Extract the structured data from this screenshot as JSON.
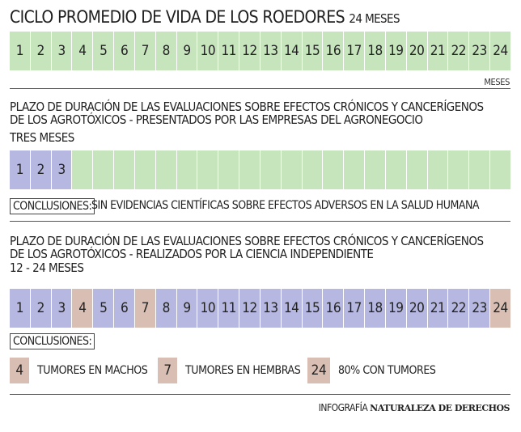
{
  "section1": {
    "title": "CICLO PROMEDIO DE VIDA DE LOS ROEDORES",
    "title_suffix": "24 MESES",
    "months": [
      "1",
      "2",
      "3",
      "4",
      "5",
      "6",
      "7",
      "8",
      "9",
      "10",
      "11",
      "12",
      "13",
      "14",
      "15",
      "16",
      "17",
      "18",
      "19",
      "20",
      "21",
      "22",
      "23",
      "24"
    ],
    "unit_label": "MESES"
  },
  "section2": {
    "title_line1": "PLAZO DE DURACIÓN DE LAS EVALUACIONES SOBRE EFECTOS CRÓNICOS Y  CANCERÍGENOS",
    "title_line2": "DE LOS AGROTÓXICOS - PRESENTADOS POR LAS EMPRESAS DEL AGRONEGOCIO",
    "duration": "TRES MESES",
    "months": [
      "1",
      "2",
      "3",
      "",
      "",
      "",
      "",
      "",
      "",
      "",
      "",
      "",
      "",
      "",
      "",
      "",
      "",
      "",
      "",
      "",
      "",
      "",
      "",
      ""
    ],
    "conclusion_label": "CONCLUSIONES:",
    "conclusion_text": "SIN EVIDENCIAS CIENTÍFICAS SOBRE EFECTOS ADVERSOS EN LA SALUD HUMANA"
  },
  "section3": {
    "title_line1": "PLAZO DE DURACIÓN DE LAS EVALUACIONES SOBRE EFECTOS CRÓNICOS Y  CANCERÍGENOS",
    "title_line2": "DE LOS AGROTÓXICOS - REALIZADOS POR LA CIENCIA INDEPENDIENTE",
    "duration": "12 - 24 MESES",
    "months": [
      "1",
      "2",
      "3",
      "4",
      "5",
      "6",
      "7",
      "8",
      "9",
      "10",
      "11",
      "12",
      "13",
      "14",
      "15",
      "16",
      "17",
      "18",
      "19",
      "20",
      "21",
      "22",
      "23",
      "24"
    ],
    "highlight_months": [
      4,
      7,
      24
    ],
    "conclusion_label": "CONCLUSIONES:",
    "legend": [
      {
        "num": "4",
        "text": "TUMORES EN MACHOS"
      },
      {
        "num": "7",
        "text": "TUMORES EN HEMBRAS"
      },
      {
        "num": "24",
        "text": "80% CON TUMORES"
      }
    ]
  },
  "colors": {
    "green": "#c6e5bc",
    "blue": "#b6b8e2",
    "pink": "#d9beb3"
  },
  "credit": {
    "prefix": "INFOGRAFÍA",
    "name": "NATURALEZA DE DERECHOS"
  }
}
